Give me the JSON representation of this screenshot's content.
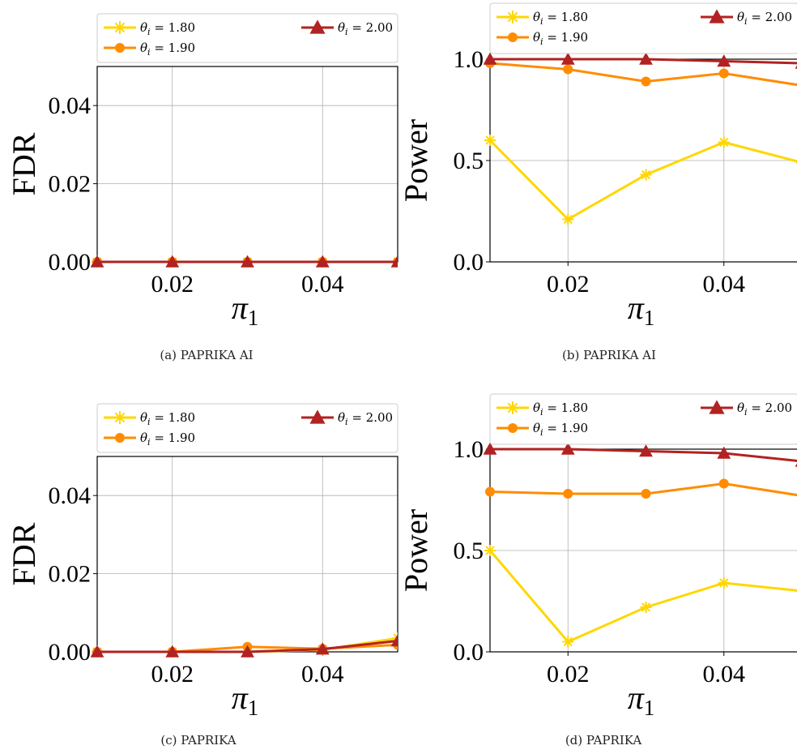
{
  "chart_data": [
    {
      "type": "line",
      "caption": "(a) PAPRIKA AI",
      "ylabel": "FDR",
      "xlabel_base": "π",
      "xlabel_sub": "1",
      "xlim": [
        0.01,
        0.05
      ],
      "ylim": [
        0,
        0.05
      ],
      "xticks": [
        0.02,
        0.04
      ],
      "xtick_labels": [
        "0.02",
        "0.04"
      ],
      "yticks": [
        0.0,
        0.02,
        0.04
      ],
      "ytick_labels": [
        "0.00",
        "0.02",
        "0.04"
      ],
      "grid": true,
      "legend": "top",
      "x": [
        0.01,
        0.02,
        0.03,
        0.04,
        0.05
      ],
      "series": [
        {
          "name_prefix": "θ",
          "name_sub": "i",
          "name_value": " = 1.80",
          "values": [
            0,
            0,
            0,
            0,
            0
          ],
          "marker": "star",
          "color": "#FFD700"
        },
        {
          "name_prefix": "θ",
          "name_sub": "i",
          "name_value": " = 1.90",
          "values": [
            0,
            0,
            0,
            0,
            0
          ],
          "marker": "circle",
          "color": "#FF8C00"
        },
        {
          "name_prefix": "θ",
          "name_sub": "i",
          "name_value": " = 2.00",
          "values": [
            0,
            0,
            0,
            0,
            0
          ],
          "marker": "triangle",
          "color": "#B22222"
        }
      ]
    },
    {
      "type": "line",
      "caption": "(b) PAPRIKA AI",
      "ylabel": "Power",
      "xlabel_base": "π",
      "xlabel_sub": "1",
      "xlim": [
        0.01,
        0.05
      ],
      "ylim": [
        0,
        1.0
      ],
      "xticks": [
        0.02,
        0.04
      ],
      "xtick_labels": [
        "0.02",
        "0.04"
      ],
      "yticks": [
        0.0,
        0.5,
        1.0
      ],
      "ytick_labels": [
        "0.0",
        "0.5",
        "1.0"
      ],
      "grid": true,
      "legend": "top",
      "x": [
        0.01,
        0.02,
        0.03,
        0.04,
        0.05
      ],
      "series": [
        {
          "name_prefix": "θ",
          "name_sub": "i",
          "name_value": " = 1.80",
          "values": [
            0.6,
            0.21,
            0.43,
            0.59,
            0.49
          ],
          "marker": "star",
          "color": "#FFD700"
        },
        {
          "name_prefix": "θ",
          "name_sub": "i",
          "name_value": " = 1.90",
          "values": [
            0.98,
            0.95,
            0.89,
            0.93,
            0.87
          ],
          "marker": "circle",
          "color": "#FF8C00"
        },
        {
          "name_prefix": "θ",
          "name_sub": "i",
          "name_value": " = 2.00",
          "values": [
            1.0,
            1.0,
            1.0,
            0.99,
            0.98
          ],
          "marker": "triangle",
          "color": "#B22222"
        }
      ]
    },
    {
      "type": "line",
      "caption": "(c) PAPRIKA",
      "ylabel": "FDR",
      "xlabel_base": "π",
      "xlabel_sub": "1",
      "xlim": [
        0.01,
        0.05
      ],
      "ylim": [
        0,
        0.05
      ],
      "xticks": [
        0.02,
        0.04
      ],
      "xtick_labels": [
        "0.02",
        "0.04"
      ],
      "yticks": [
        0.0,
        0.02,
        0.04
      ],
      "ytick_labels": [
        "0.00",
        "0.02",
        "0.04"
      ],
      "grid": true,
      "legend": "top",
      "x": [
        0.01,
        0.02,
        0.03,
        0.04,
        0.05
      ],
      "series": [
        {
          "name_prefix": "θ",
          "name_sub": "i",
          "name_value": " = 1.80",
          "values": [
            0,
            0,
            0,
            0.0005,
            0.0035
          ],
          "marker": "star",
          "color": "#FFD700"
        },
        {
          "name_prefix": "θ",
          "name_sub": "i",
          "name_value": " = 1.90",
          "values": [
            0,
            0,
            0.0013,
            0.0008,
            0.0018
          ],
          "marker": "circle",
          "color": "#FF8C00"
        },
        {
          "name_prefix": "θ",
          "name_sub": "i",
          "name_value": " = 2.00",
          "values": [
            0,
            0,
            0,
            0.0007,
            0.0028
          ],
          "marker": "triangle",
          "color": "#B22222"
        }
      ]
    },
    {
      "type": "line",
      "caption": "(d) PAPRIKA",
      "ylabel": "Power",
      "xlabel_base": "π",
      "xlabel_sub": "1",
      "xlim": [
        0.01,
        0.05
      ],
      "ylim": [
        0,
        1.0
      ],
      "xticks": [
        0.02,
        0.04
      ],
      "xtick_labels": [
        "0.02",
        "0.04"
      ],
      "yticks": [
        0.0,
        0.5,
        1.0
      ],
      "ytick_labels": [
        "0.0",
        "0.5",
        "1.0"
      ],
      "grid": true,
      "legend": "top",
      "x": [
        0.01,
        0.02,
        0.03,
        0.04,
        0.05
      ],
      "series": [
        {
          "name_prefix": "θ",
          "name_sub": "i",
          "name_value": " = 1.80",
          "values": [
            0.5,
            0.05,
            0.22,
            0.34,
            0.3
          ],
          "marker": "star",
          "color": "#FFD700"
        },
        {
          "name_prefix": "θ",
          "name_sub": "i",
          "name_value": " = 1.90",
          "values": [
            0.79,
            0.78,
            0.78,
            0.83,
            0.77
          ],
          "marker": "circle",
          "color": "#FF8C00"
        },
        {
          "name_prefix": "θ",
          "name_sub": "i",
          "name_value": " = 2.00",
          "values": [
            1.0,
            1.0,
            0.99,
            0.98,
            0.94
          ],
          "marker": "triangle",
          "color": "#B22222"
        }
      ]
    }
  ]
}
